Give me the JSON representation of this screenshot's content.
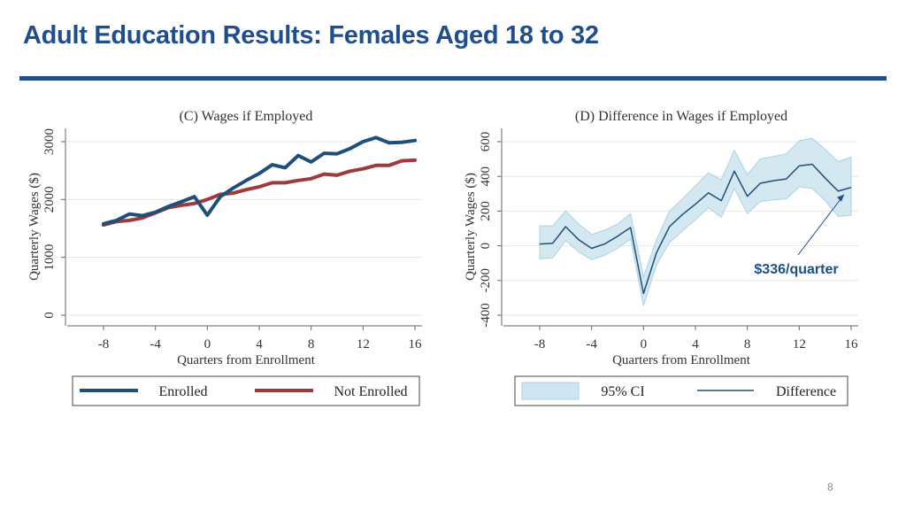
{
  "slide": {
    "title": "Adult Education Results: Females Aged 18 to 32",
    "page_number": "8"
  },
  "colors": {
    "title": "#1f4e8c",
    "enrolled": "#1f4e79",
    "not_enrolled": "#9e3a3e",
    "ci_fill": "#cfe6f0",
    "ci_edge": "#a9d3e5",
    "difference": "#1f4e79",
    "annotation": "#1f4e8c"
  },
  "chart_data": [
    {
      "type": "line",
      "title": "(C) Wages if Employed",
      "xlabel": "Quarters from Enrollment",
      "ylabel": "Quarterly Wages ($)",
      "xlim": [
        -8,
        16
      ],
      "ylim": [
        0,
        3000
      ],
      "xticks": [
        "-8",
        "-4",
        "0",
        "4",
        "8",
        "12",
        "16"
      ],
      "yticks": [
        "0",
        "1000",
        "2000",
        "3000"
      ],
      "grid": true,
      "legend_placement": "bottom",
      "x": [
        -8,
        -7,
        -6,
        -5,
        -4,
        -3,
        -2,
        -1,
        0,
        1,
        2,
        3,
        4,
        5,
        6,
        7,
        8,
        9,
        10,
        11,
        12,
        13,
        14,
        15,
        16
      ],
      "series": [
        {
          "name": "Enrolled",
          "values": [
            1580,
            1640,
            1750,
            1720,
            1780,
            1880,
            1960,
            2050,
            1730,
            2050,
            2200,
            2330,
            2450,
            2600,
            2550,
            2760,
            2650,
            2800,
            2790,
            2880,
            3000,
            3070,
            2980,
            2990,
            3020
          ]
        },
        {
          "name": "Not Enrolled",
          "values": [
            1560,
            1620,
            1640,
            1680,
            1770,
            1860,
            1900,
            1930,
            2000,
            2090,
            2110,
            2170,
            2220,
            2290,
            2290,
            2330,
            2360,
            2440,
            2420,
            2490,
            2530,
            2590,
            2590,
            2670,
            2680
          ]
        }
      ]
    },
    {
      "type": "line",
      "title": "(D) Difference in Wages if Employed",
      "xlabel": "Quarters from Enrollment",
      "ylabel": "Quarterly Wages ($)",
      "xlim": [
        -8,
        16
      ],
      "ylim": [
        -400,
        600
      ],
      "xticks": [
        "-8",
        "-4",
        "0",
        "4",
        "8",
        "12",
        "16"
      ],
      "yticks": [
        "-400",
        "-200",
        "0",
        "200",
        "400",
        "600"
      ],
      "grid": true,
      "legend_placement": "bottom",
      "x": [
        -8,
        -7,
        -6,
        -5,
        -4,
        -3,
        -2,
        -1,
        0,
        1,
        2,
        3,
        4,
        5,
        6,
        7,
        8,
        9,
        10,
        11,
        12,
        13,
        14,
        15,
        16
      ],
      "series": [
        {
          "name": "Difference",
          "values": [
            10,
            15,
            110,
            35,
            -15,
            10,
            55,
            105,
            -275,
            -40,
            110,
            180,
            240,
            305,
            260,
            430,
            285,
            360,
            375,
            385,
            460,
            470,
            390,
            315,
            336
          ]
        },
        {
          "name": "95% CI",
          "role": "band",
          "lower": [
            -75,
            -70,
            30,
            -35,
            -80,
            -55,
            -15,
            40,
            -345,
            -110,
            20,
            85,
            150,
            220,
            165,
            330,
            185,
            255,
            265,
            270,
            340,
            330,
            260,
            170,
            175
          ],
          "upper": [
            115,
            115,
            200,
            125,
            65,
            90,
            125,
            185,
            -180,
            35,
            200,
            270,
            345,
            420,
            380,
            550,
            410,
            500,
            515,
            530,
            605,
            620,
            555,
            485,
            510
          ]
        }
      ],
      "annotations": [
        {
          "text": "$336/quarter",
          "x": 16,
          "y": 336
        }
      ]
    }
  ],
  "legends": {
    "left": {
      "items": [
        "Enrolled",
        "Not Enrolled"
      ]
    },
    "right": {
      "items": [
        "95% CI",
        "Difference"
      ]
    }
  }
}
